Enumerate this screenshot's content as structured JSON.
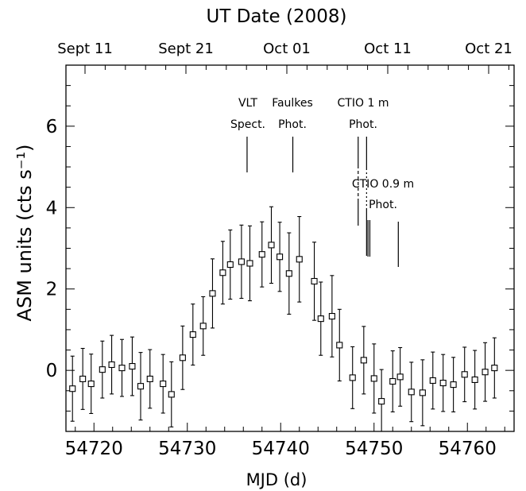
{
  "colors": {
    "foreground": "#000000",
    "background": "#ffffff"
  },
  "chart_data": {
    "type": "scatter",
    "x2label": "UT Date (2008)",
    "xlabel": "MJD (d)",
    "ylabel": "ASM units (cts s⁻¹)",
    "xlim": [
      54717,
      54765
    ],
    "ylim": [
      -1.5,
      7.5
    ],
    "xticks": [
      54720,
      54730,
      54740,
      54750,
      54760
    ],
    "x_minor_step": 2,
    "yticks": [
      0,
      2,
      4,
      6
    ],
    "y_minor_step": 0.5,
    "x2_tick_labels": [
      "Sept 11",
      "Sept 21",
      "Oct 01",
      "Oct 11",
      "Oct 21"
    ],
    "grid": false,
    "legend": "none",
    "marker": "open-square",
    "series": [
      {
        "x": [
          54717.7,
          54718.8,
          54719.7,
          54720.9,
          54721.9,
          54723.0,
          54724.1,
          54725.0,
          54726.0,
          54727.4,
          54728.3,
          54729.5,
          54730.6,
          54731.7,
          54732.7,
          54733.8,
          54734.6,
          54735.8,
          54736.7,
          54738.0,
          54739.0,
          54739.9,
          54740.9,
          54742.0,
          54743.6,
          54744.3,
          54745.5,
          54746.3,
          54747.7,
          54748.9,
          54750.0,
          54750.8,
          54752.0,
          54752.8,
          54754.0,
          54755.2,
          54756.3,
          54757.4,
          54758.5,
          54759.7,
          54760.8,
          54761.9,
          54762.9
        ],
        "y": [
          -0.45,
          -0.21,
          -0.33,
          0.02,
          0.14,
          0.06,
          0.1,
          -0.39,
          -0.21,
          -0.33,
          -0.59,
          0.31,
          0.88,
          1.09,
          1.89,
          2.4,
          2.6,
          2.67,
          2.63,
          2.85,
          3.08,
          2.79,
          2.38,
          2.73,
          2.19,
          1.27,
          1.33,
          0.62,
          -0.18,
          0.25,
          -0.2,
          -0.76,
          -0.27,
          -0.16,
          -0.53,
          -0.55,
          -0.25,
          -0.31,
          -0.35,
          -0.1,
          -0.23,
          -0.04,
          0.06
        ],
        "yerr": [
          0.8,
          0.75,
          0.73,
          0.7,
          0.72,
          0.7,
          0.72,
          0.83,
          0.72,
          0.72,
          0.8,
          0.78,
          0.75,
          0.72,
          0.85,
          0.77,
          0.85,
          0.9,
          0.92,
          0.8,
          0.94,
          0.85,
          1.0,
          1.05,
          0.96,
          0.9,
          1.0,
          0.88,
          0.76,
          0.83,
          0.85,
          0.78,
          0.75,
          0.72,
          0.73,
          0.81,
          0.7,
          0.7,
          0.67,
          0.67,
          0.72,
          0.72,
          0.74
        ]
      }
    ],
    "annotations": [
      {
        "lines": [
          "VLT",
          "Spect."
        ],
        "mjd": [
          54736.4
        ]
      },
      {
        "lines": [
          "Faulkes",
          "Phot."
        ],
        "mjd": [
          54741.3
        ]
      },
      {
        "lines": [
          "CTIO 1 m",
          "Phot."
        ],
        "mjd": [
          54748.3,
          54749.2
        ]
      },
      {
        "lines": [
          "CTIO 0.9 m",
          "Phot."
        ],
        "mjd": [
          54749.35,
          54749.55,
          54752.6
        ]
      }
    ]
  }
}
